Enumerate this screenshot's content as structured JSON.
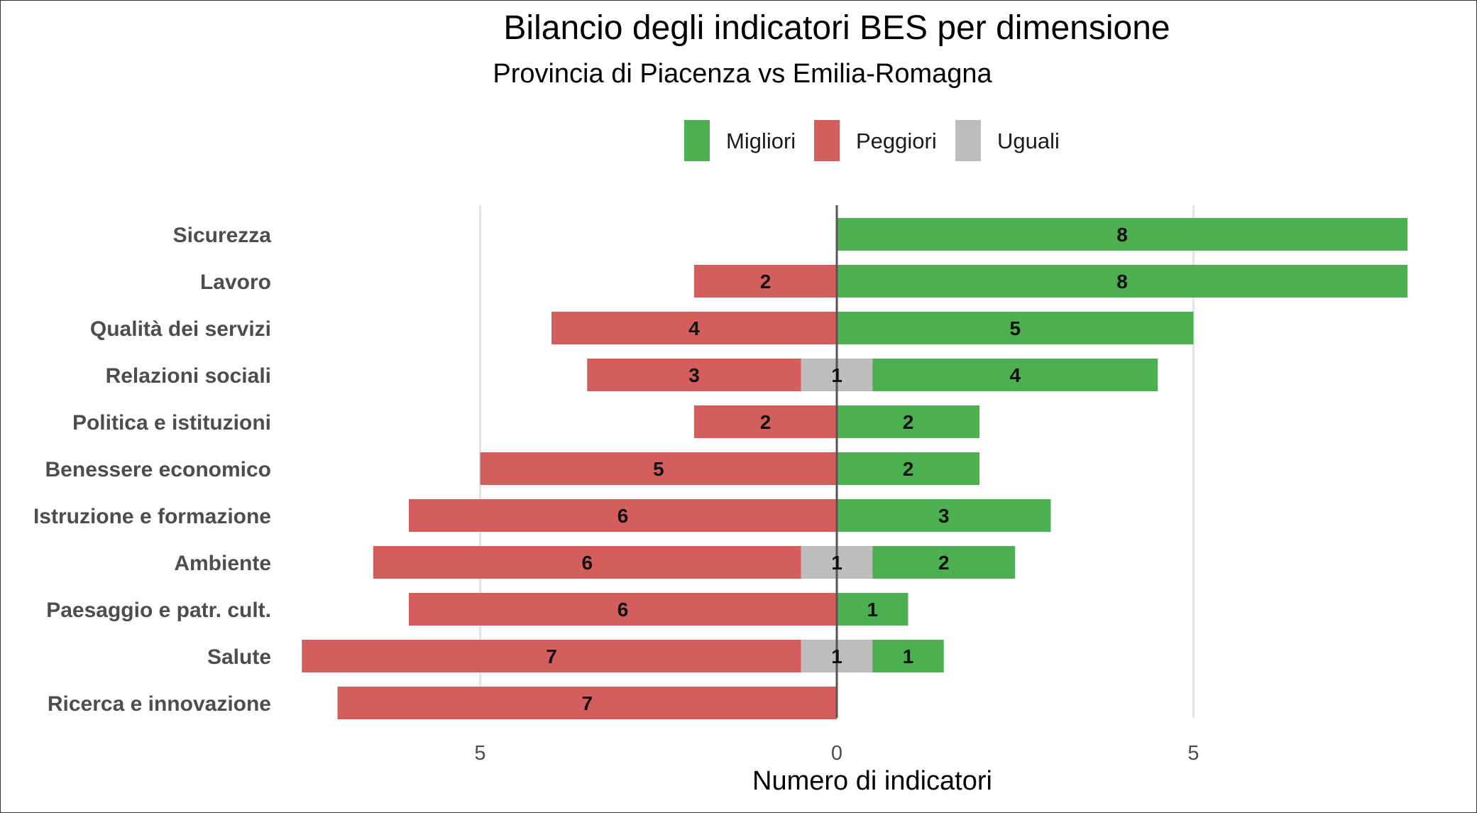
{
  "chart_data": {
    "type": "bar",
    "orientation": "horizontal-diverging",
    "title": "Bilancio degli indicatori BES per dimensione",
    "subtitle": "Provincia di Piacenza vs Emilia-Romagna",
    "xlabel": "Numero di indicatori",
    "ylabel": "",
    "xlim": [
      -7,
      8
    ],
    "x_ticks": [
      -5,
      0,
      5
    ],
    "x_tick_labels": [
      "5",
      "0",
      "5"
    ],
    "grid": true,
    "legend_position": "top",
    "categories": [
      "Sicurezza",
      "Lavoro",
      "Qualità dei servizi",
      "Relazioni sociali",
      "Politica e istituzioni",
      "Benessere economico",
      "Istruzione e formazione",
      "Ambiente",
      "Paesaggio e patr. cult.",
      "Salute",
      "Ricerca e innovazione"
    ],
    "series": [
      {
        "name": "Migliori",
        "color": "#4caf50",
        "values": [
          8,
          8,
          5,
          4,
          2,
          2,
          3,
          2,
          1,
          1,
          0
        ]
      },
      {
        "name": "Peggiori",
        "color": "#d45d5d",
        "values": [
          0,
          2,
          4,
          3,
          2,
          5,
          6,
          6,
          6,
          7,
          7
        ]
      },
      {
        "name": "Uguali",
        "color": "#bdbdbd",
        "values": [
          0,
          0,
          0,
          1,
          0,
          0,
          0,
          1,
          0,
          1,
          0
        ]
      }
    ]
  }
}
